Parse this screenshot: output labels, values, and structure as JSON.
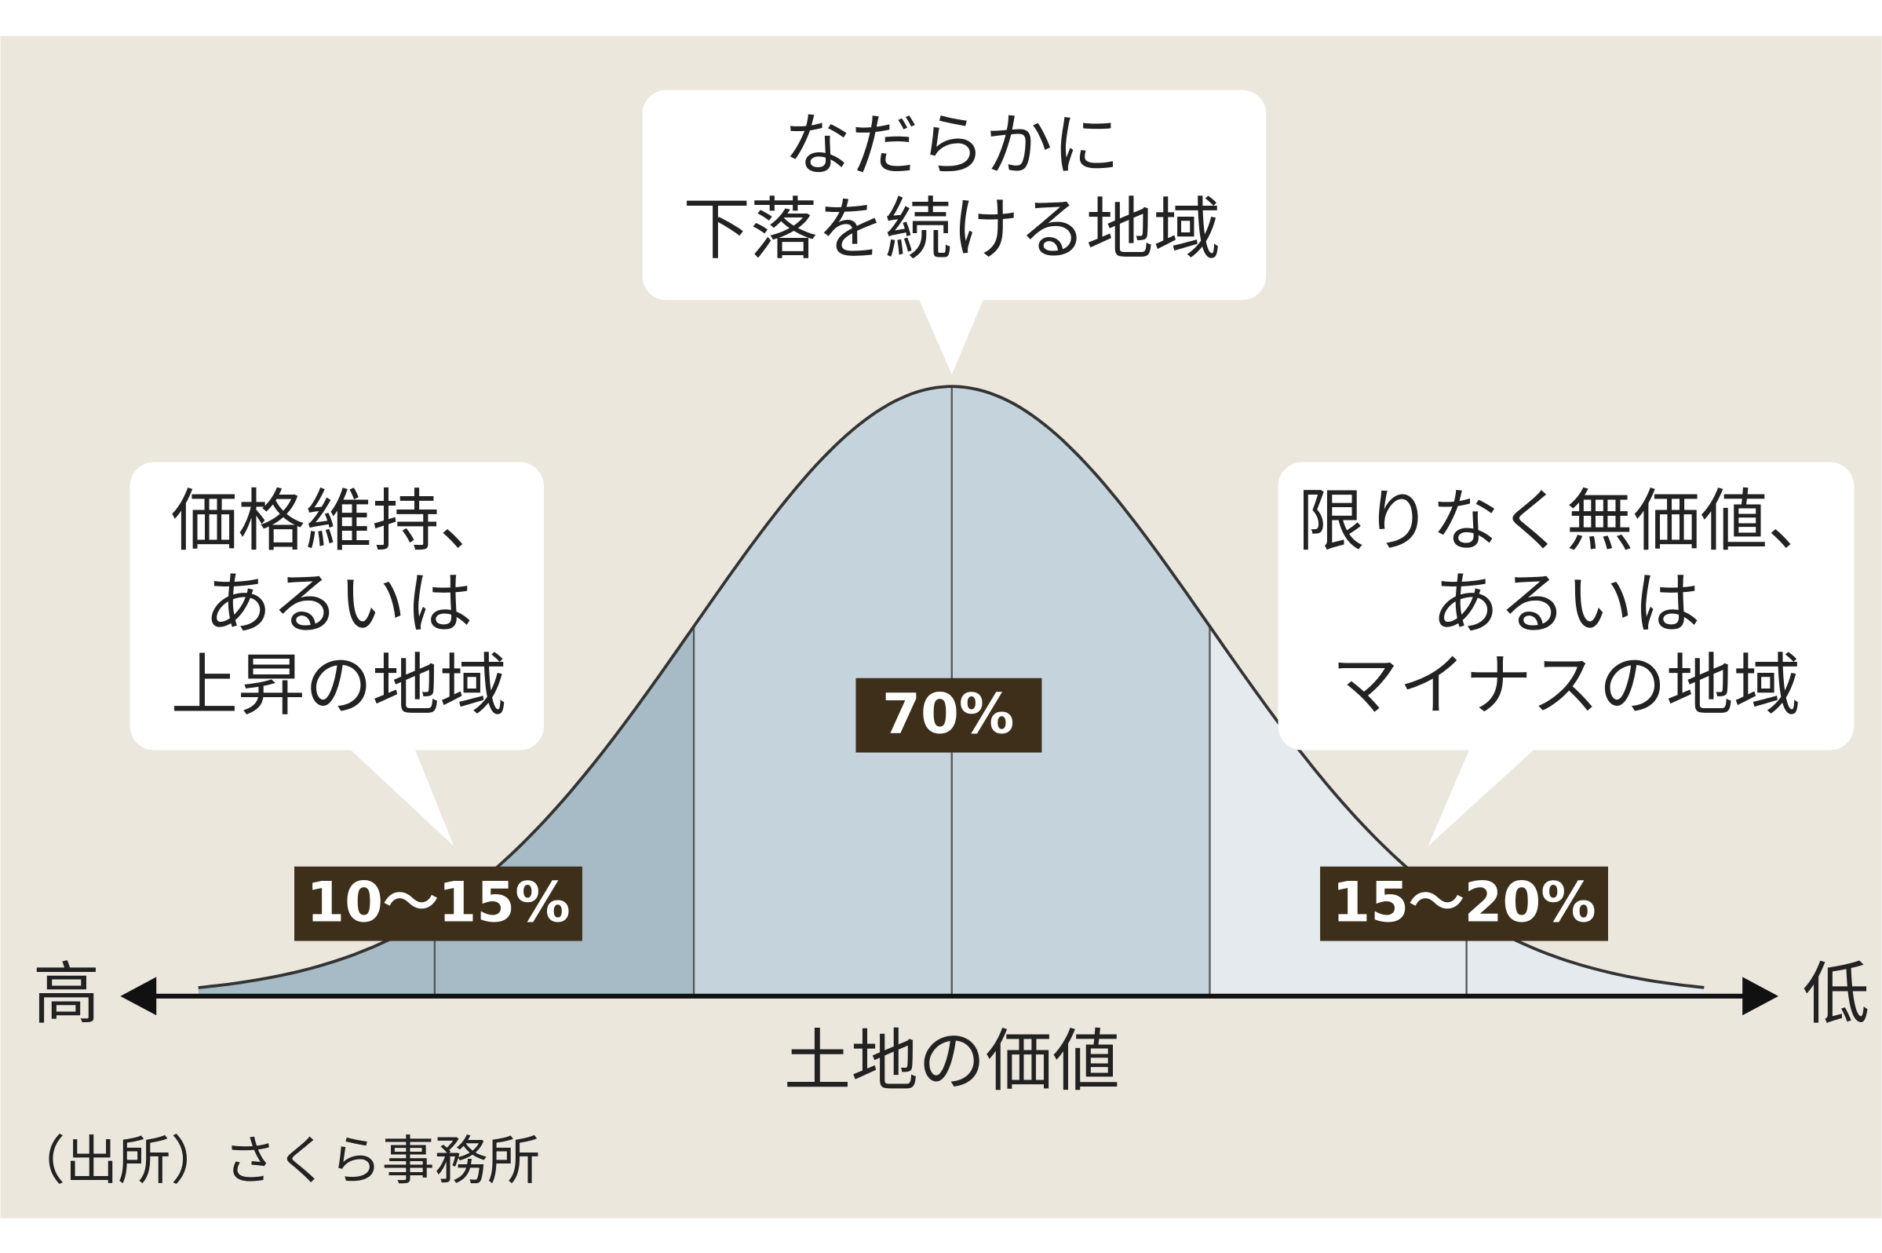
{
  "callouts": [
    {
      "lines": [
        "なだらかに",
        "下落を続ける地域"
      ]
    },
    {
      "lines": [
        "価格維持、",
        "あるいは",
        "上昇の地域"
      ]
    },
    {
      "lines": [
        "限りなく無価値、",
        "あるいは",
        "マイナスの地域"
      ]
    }
  ],
  "shares": [
    "70%",
    "10〜15%",
    "15〜20%"
  ],
  "axis": {
    "left": "高",
    "right": "低",
    "title": "土地の価値"
  },
  "source": "（出所）さくら事務所"
}
